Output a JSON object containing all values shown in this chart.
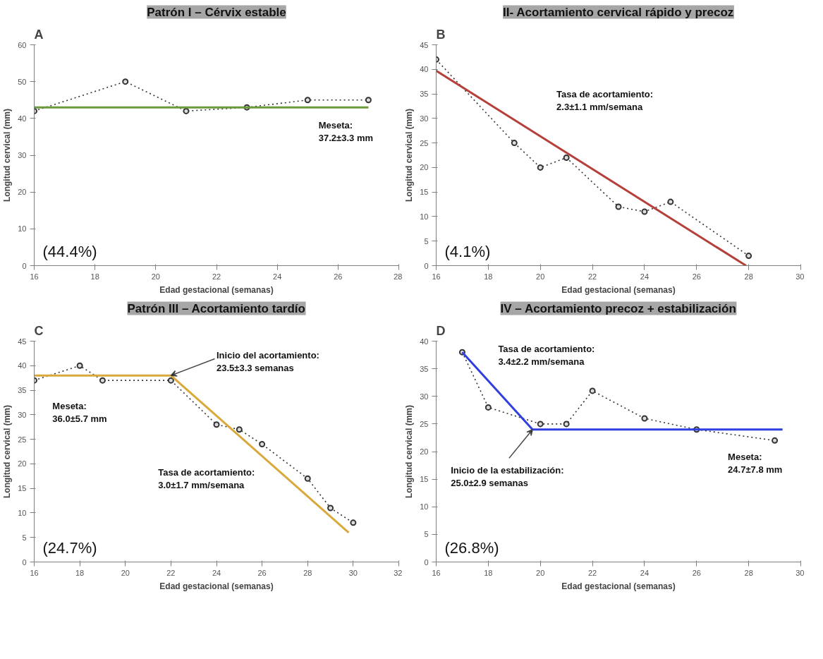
{
  "chart_data": [
    {
      "type": "line",
      "title": "Patrón I – Cérvix estable",
      "xlabel": "Edad gestacional (semanas)",
      "ylabel": "Longitud cervical (mm)",
      "xlim": [
        16,
        28
      ],
      "xticks": [
        16,
        18,
        20,
        22,
        24,
        26,
        28
      ],
      "ylim": [
        0,
        60
      ],
      "yticks": [
        0,
        10,
        20,
        30,
        40,
        50,
        60
      ],
      "series": [
        {
          "color": "#333333",
          "marker": "circle",
          "line_style": "dotted",
          "x": [
            16,
            19,
            21,
            23,
            25,
            27
          ],
          "values": [
            42,
            50,
            42,
            43,
            45,
            45
          ]
        },
        {
          "color": "#6a9a3a",
          "marker": "none",
          "line_style": "solid",
          "x": [
            16,
            27
          ],
          "values": [
            43,
            43
          ]
        }
      ],
      "annotations": [
        "A",
        "(44.4%)",
        "Meseta:\n37.2±3.3 mm"
      ]
    },
    {
      "type": "line",
      "title": "II- Acortamiento cervical rápido y precoz",
      "xlabel": "Edad gestacional (semanas)",
      "ylabel": "Longitud cervical (mm)",
      "xlim": [
        16,
        30
      ],
      "xticks": [
        16,
        18,
        20,
        22,
        24,
        26,
        28,
        30
      ],
      "ylim": [
        0,
        45
      ],
      "yticks": [
        0,
        5,
        10,
        15,
        20,
        25,
        30,
        35,
        40,
        45
      ],
      "series": [
        {
          "color": "#333333",
          "marker": "circle",
          "line_style": "dotted",
          "x": [
            16,
            19,
            20,
            21,
            23,
            24,
            25,
            28
          ],
          "values": [
            42,
            25,
            20,
            22,
            12,
            11,
            13,
            2
          ]
        },
        {
          "color": "#b5403a",
          "marker": "none",
          "line_style": "solid",
          "x": [
            16,
            27.9
          ],
          "values": [
            39.7,
            0
          ]
        }
      ],
      "annotations": [
        "B",
        "(4.1%)",
        "Tasa de acortamiento:\n2.3±1.1 mm/semana"
      ]
    },
    {
      "type": "line",
      "title": "Patrón III – Acortamiento tardío",
      "xlabel": "Edad gestacional (semanas)",
      "ylabel": "Longitud cervical (mm)",
      "xlim": [
        16,
        32
      ],
      "xticks": [
        16,
        18,
        20,
        22,
        24,
        26,
        28,
        30,
        32
      ],
      "ylim": [
        0,
        45
      ],
      "yticks": [
        0,
        5,
        10,
        15,
        20,
        25,
        30,
        35,
        40,
        45
      ],
      "series": [
        {
          "color": "#333333",
          "marker": "circle",
          "line_style": "dotted",
          "x": [
            16,
            18,
            19,
            22,
            24,
            25,
            26,
            28,
            29,
            30
          ],
          "values": [
            37,
            40,
            37,
            37,
            28,
            27,
            24,
            17,
            11,
            8
          ]
        },
        {
          "color": "#d9a93a",
          "marker": "none",
          "line_style": "solid",
          "x": [
            16,
            22,
            29.8
          ],
          "values": [
            38,
            38,
            6
          ]
        }
      ],
      "annotations": [
        "C",
        "(24.7%)",
        {
          "text": "Inicio del acortamiento:\n23.5±3.3 semanas",
          "x": 22,
          "y": 38
        },
        "Meseta:\n36.0±5.7 mm",
        "Tasa de acortamiento:\n3.0±1.7 mm/semana"
      ]
    },
    {
      "type": "line",
      "title": "IV – Acortamiento precoz + estabilización",
      "xlabel": "Edad gestacional (semanas)",
      "ylabel": "Longitud cervical (mm)",
      "xlim": [
        16,
        30
      ],
      "xticks": [
        16,
        18,
        20,
        22,
        24,
        26,
        28,
        30
      ],
      "ylim": [
        0,
        40
      ],
      "yticks": [
        0,
        5,
        10,
        15,
        20,
        25,
        30,
        35,
        40
      ],
      "series": [
        {
          "color": "#333333",
          "marker": "circle",
          "line_style": "dotted",
          "x": [
            17,
            18,
            20,
            21,
            22,
            24,
            26,
            29
          ],
          "values": [
            38,
            28,
            25,
            25,
            31,
            26,
            24,
            22
          ]
        },
        {
          "color": "#2f3fe0",
          "marker": "none",
          "line_style": "solid",
          "x": [
            17,
            19.7,
            29.3
          ],
          "values": [
            38,
            24,
            24
          ]
        }
      ],
      "annotations": [
        "D",
        "(26.8%)",
        "Tasa de acortamiento:\n3.4±2.2 mm/semana",
        {
          "text": "Inicio de la estabilización:\n25.0±2.9 semanas",
          "x": 19.7,
          "y": 24
        },
        "Meseta:\n24.7±7.8 mm"
      ]
    }
  ]
}
